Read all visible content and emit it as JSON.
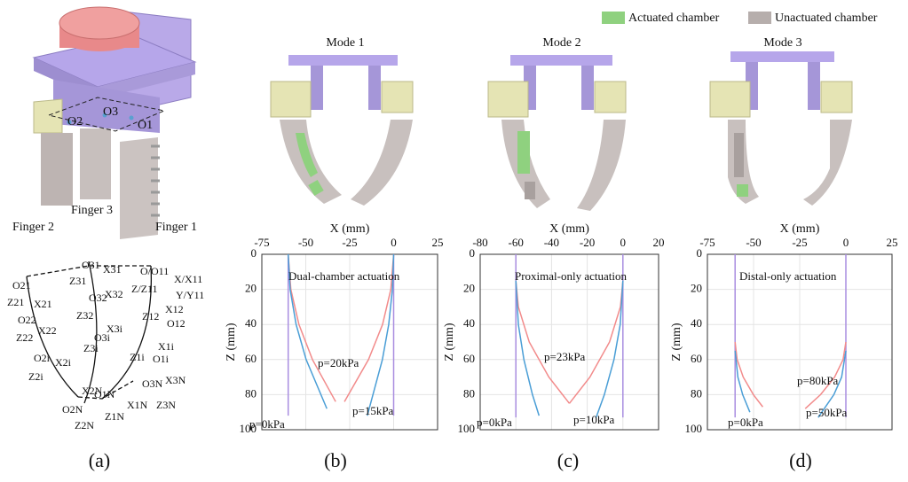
{
  "figure": {
    "legend": [
      "Actuated chamber",
      "Unactuated chamber"
    ],
    "modes": [
      "Mode 1",
      "Mode 2",
      "Mode 3"
    ],
    "panel_labels": [
      "(a)",
      "(b)",
      "(c)",
      "(d)"
    ],
    "render_labels": [
      "Finger 2",
      "Finger 3",
      "Finger 1",
      "O2",
      "O3",
      "O1"
    ],
    "kinematic_labels": [
      "O31",
      "X31",
      "O/O11",
      "X/X11",
      "Z31",
      "Z/Z11",
      "Y/Y11",
      "O21",
      "O32",
      "X32",
      "Z21",
      "X21",
      "X12",
      "Z32",
      "Z12",
      "O12",
      "O22",
      "Z22",
      "X22",
      "X3i",
      "O3i",
      "Z3i",
      "X1i",
      "O1i",
      "Z1i",
      "O2i",
      "X2i",
      "Z2i",
      "X2N",
      "O3N",
      "X3N",
      "O1N",
      "Z3N",
      "O2N",
      "X1N",
      "Z1N",
      "Z2N"
    ]
  },
  "chart_data": [
    {
      "type": "line",
      "xlabel": "X (mm)",
      "ylabel": "Z (mm)",
      "xlim": [
        -75,
        25
      ],
      "xticks": [
        -75,
        -50,
        -25,
        0,
        25
      ],
      "ylim": [
        100,
        0
      ],
      "yticks": [
        0,
        20,
        40,
        60,
        80,
        100
      ],
      "grid": true,
      "annotations": [
        "Dual-chamber actuation",
        "p=20kPa",
        "p=15kPa",
        "p=0kPa"
      ],
      "series": [
        {
          "color": "#a98ee0",
          "x": [
            -60,
            -60
          ],
          "values": [
            0,
            92
          ]
        },
        {
          "color": "#a98ee0",
          "x": [
            0,
            0
          ],
          "values": [
            0,
            92
          ]
        },
        {
          "color": "#f28b8b",
          "x": [
            -60,
            -58.5,
            -53.9,
            -46.2,
            -33
          ],
          "values": [
            0,
            20,
            40,
            60,
            84
          ]
        },
        {
          "color": "#f28b8b",
          "x": [
            0,
            -1.6,
            -6.3,
            -14.3,
            -28
          ],
          "values": [
            0,
            20,
            40,
            60,
            84
          ]
        },
        {
          "color": "#4a9ed6",
          "x": [
            -60,
            -58.9,
            -55.5,
            -49.8,
            -38
          ],
          "values": [
            0,
            20,
            40,
            60,
            88
          ]
        },
        {
          "color": "#4a9ed6",
          "x": [
            0,
            -0.7,
            -2.8,
            -6.4,
            -15
          ],
          "values": [
            0,
            20,
            40,
            60,
            92
          ]
        }
      ]
    },
    {
      "type": "line",
      "xlabel": "X (mm)",
      "ylabel": "Z (mm)",
      "xlim": [
        -80,
        20
      ],
      "xticks": [
        -80,
        -60,
        -40,
        -20,
        0,
        20
      ],
      "ylim": [
        100,
        0
      ],
      "yticks": [
        0,
        20,
        40,
        60,
        80,
        100
      ],
      "grid": true,
      "annotations": [
        "Proximal-only actuation",
        "p=23kPa",
        "p=10kPa",
        "p=0kPa"
      ],
      "series": [
        {
          "color": "#a98ee0",
          "x": [
            -60,
            -60
          ],
          "values": [
            0,
            93
          ]
        },
        {
          "color": "#a98ee0",
          "x": [
            0,
            0
          ],
          "values": [
            0,
            93
          ]
        },
        {
          "color": "#f28b8b",
          "x": [
            -60,
            -58.6,
            -52.5,
            -41.5,
            -30
          ],
          "values": [
            15,
            30,
            50,
            70,
            85
          ]
        },
        {
          "color": "#f28b8b",
          "x": [
            0,
            -1.4,
            -7.5,
            -18.5,
            -30
          ],
          "values": [
            15,
            30,
            50,
            70,
            85
          ]
        },
        {
          "color": "#4a9ed6",
          "x": [
            -60,
            -58.6,
            -55.5,
            -50.7,
            -47
          ],
          "values": [
            15,
            40,
            60,
            80,
            92
          ]
        },
        {
          "color": "#4a9ed6",
          "x": [
            0,
            -1.5,
            -5,
            -10.4,
            -15
          ],
          "values": [
            15,
            40,
            60,
            80,
            93
          ]
        }
      ]
    },
    {
      "type": "line",
      "xlabel": "X (mm)",
      "ylabel": "Z (mm)",
      "xlim": [
        -75,
        25
      ],
      "xticks": [
        -75,
        -50,
        -25,
        0,
        25
      ],
      "ylim": [
        100,
        0
      ],
      "yticks": [
        0,
        20,
        40,
        60,
        80,
        100
      ],
      "grid": true,
      "annotations": [
        "Distal-only actuation",
        "p=80kPa",
        "p=50kPa",
        "p=0kPa"
      ],
      "series": [
        {
          "color": "#a98ee0",
          "x": [
            -60,
            -60
          ],
          "values": [
            0,
            93
          ]
        },
        {
          "color": "#a98ee0",
          "x": [
            0,
            0
          ],
          "values": [
            0,
            93
          ]
        },
        {
          "color": "#f28b8b",
          "x": [
            -60,
            -58.9,
            -55.6,
            -50.1,
            -45
          ],
          "values": [
            50,
            60,
            70,
            80,
            87
          ]
        },
        {
          "color": "#f28b8b",
          "x": [
            0,
            -1.5,
            -6.1,
            -13.7,
            -22
          ],
          "values": [
            50,
            60,
            70,
            80,
            88
          ]
        },
        {
          "color": "#4a9ed6",
          "x": [
            -60,
            -58.5,
            -55.9,
            -52
          ],
          "values": [
            55,
            70,
            80,
            90
          ]
        },
        {
          "color": "#4a9ed6",
          "x": [
            0,
            -2.3,
            -6.5,
            -15
          ],
          "values": [
            55,
            70,
            80,
            93
          ]
        }
      ]
    }
  ]
}
